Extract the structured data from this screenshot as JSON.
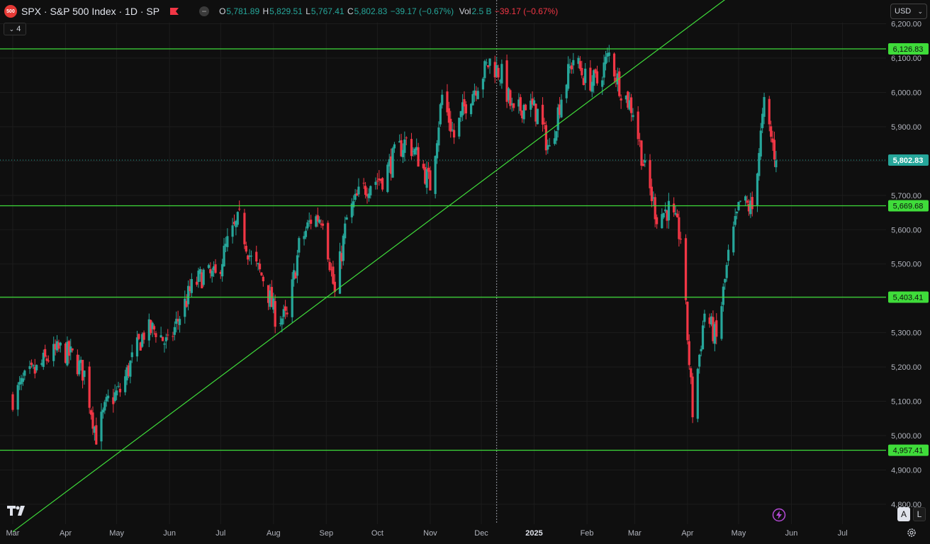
{
  "header": {
    "logo_text": "500",
    "symbol": "SPX · S&P 500 Index · 1D · SP",
    "collapse_glyph": "−",
    "ohlc": [
      {
        "k": "O",
        "v": "5,781.89"
      },
      {
        "k": "H",
        "v": "5,829.51"
      },
      {
        "k": "L",
        "v": "5,767.41"
      },
      {
        "k": "C",
        "v": "5,802.83"
      }
    ],
    "change": "−39.17 (−0.67%)",
    "vol_label": "Vol",
    "vol_value": "2.5 B",
    "vol_change": "−39.17 (−0.67%)"
  },
  "indicator_count": "4",
  "currency": "USD",
  "axis_buttons": {
    "auto": "A",
    "log": "L"
  },
  "colors": {
    "up": "#26a69a",
    "down": "#f23645",
    "hline": "#3fdc3a",
    "bg": "#0f0f0f",
    "grid": "#1c1c1c"
  },
  "chart_data": {
    "type": "candlestick",
    "y_ticks": [
      4800,
      4900,
      5000,
      5100,
      5200,
      5300,
      5400,
      5500,
      5600,
      5700,
      5800,
      5900,
      6000,
      6100,
      6200
    ],
    "x_ticks": [
      "Mar",
      "Apr",
      "May",
      "Jun",
      "Jul",
      "Aug",
      "Sep",
      "Oct",
      "Nov",
      "Dec",
      "2025",
      "Feb",
      "Mar",
      "Apr",
      "May",
      "Jun",
      "Jul"
    ],
    "ylim": [
      4780,
      6210
    ],
    "current_price": "5,802.83",
    "horizontal_levels": [
      "6,126.83",
      "5,669.68",
      "5,403.41",
      "4,957.41"
    ],
    "trendline": {
      "from": {
        "date": "2024-03-01",
        "value": 4720
      },
      "to": {
        "date": "2025-05-01",
        "value": 6300
      }
    },
    "crosshair_date": "2024-12-10",
    "close_series": [
      [
        "2024-03-01",
        5110
      ],
      [
        "2024-03-08",
        5160
      ],
      [
        "2024-03-15",
        5190
      ],
      [
        "2024-03-22",
        5230
      ],
      [
        "2024-03-29",
        5250
      ],
      [
        "2024-04-05",
        5230
      ],
      [
        "2024-04-12",
        5180
      ],
      [
        "2024-04-19",
        5000
      ],
      [
        "2024-04-26",
        5100
      ],
      [
        "2024-05-03",
        5130
      ],
      [
        "2024-05-10",
        5220
      ],
      [
        "2024-05-17",
        5300
      ],
      [
        "2024-05-24",
        5310
      ],
      [
        "2024-05-31",
        5260
      ],
      [
        "2024-06-07",
        5350
      ],
      [
        "2024-06-14",
        5430
      ],
      [
        "2024-06-21",
        5470
      ],
      [
        "2024-06-28",
        5460
      ],
      [
        "2024-07-05",
        5560
      ],
      [
        "2024-07-12",
        5630
      ],
      [
        "2024-07-19",
        5510
      ],
      [
        "2024-07-26",
        5460
      ],
      [
        "2024-08-02",
        5350
      ],
      [
        "2024-08-09",
        5340
      ],
      [
        "2024-08-16",
        5550
      ],
      [
        "2024-08-23",
        5630
      ],
      [
        "2024-08-30",
        5640
      ],
      [
        "2024-09-06",
        5410
      ],
      [
        "2024-09-13",
        5630
      ],
      [
        "2024-09-20",
        5700
      ],
      [
        "2024-09-27",
        5740
      ],
      [
        "2024-10-04",
        5750
      ],
      [
        "2024-10-11",
        5815
      ],
      [
        "2024-10-18",
        5860
      ],
      [
        "2024-10-25",
        5810
      ],
      [
        "2024-11-01",
        5730
      ],
      [
        "2024-11-08",
        5990
      ],
      [
        "2024-11-15",
        5870
      ],
      [
        "2024-11-22",
        5970
      ],
      [
        "2024-11-29",
        6030
      ],
      [
        "2024-12-06",
        6090
      ],
      [
        "2024-12-13",
        6050
      ],
      [
        "2024-12-20",
        5930
      ],
      [
        "2024-12-27",
        5970
      ],
      [
        "2025-01-03",
        5940
      ],
      [
        "2025-01-10",
        5830
      ],
      [
        "2025-01-17",
        5990
      ],
      [
        "2025-01-24",
        6100
      ],
      [
        "2025-01-31",
        6040
      ],
      [
        "2025-02-07",
        6030
      ],
      [
        "2025-02-14",
        6110
      ],
      [
        "2025-02-21",
        6010
      ],
      [
        "2025-02-28",
        5950
      ],
      [
        "2025-03-07",
        5770
      ],
      [
        "2025-03-14",
        5640
      ],
      [
        "2025-03-21",
        5660
      ],
      [
        "2025-03-28",
        5580
      ],
      [
        "2025-04-04",
        5070
      ],
      [
        "2025-04-11",
        5360
      ],
      [
        "2025-04-18",
        5280
      ],
      [
        "2025-04-25",
        5520
      ],
      [
        "2025-05-02",
        5680
      ],
      [
        "2025-05-09",
        5660
      ],
      [
        "2025-05-16",
        5960
      ],
      [
        "2025-05-23",
        5802
      ]
    ]
  }
}
